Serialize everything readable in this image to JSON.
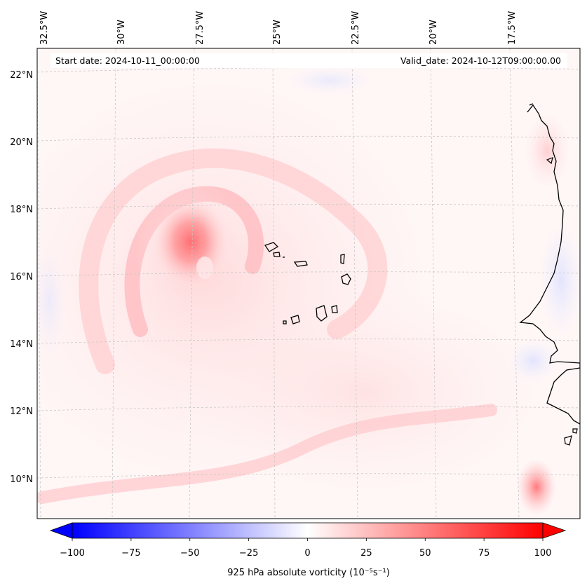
{
  "map": {
    "start_date_label": "Start date: 2024-10-11_00:00:00",
    "valid_date_label": "Valid_date: 2024-10-12T09:00:00.00",
    "lon_labels": [
      "32.5°W",
      "30°W",
      "27.5°W",
      "25°W",
      "22.5°W",
      "20°W",
      "17.5°W"
    ],
    "lat_labels": [
      "22°N",
      "20°N",
      "18°N",
      "16°N",
      "14°N",
      "12°N",
      "10°N"
    ],
    "features": {
      "vortex_center": {
        "lat": 17.0,
        "lon": -28.3
      },
      "secondary_max": {
        "lat": 9.8,
        "lon": -17.2
      }
    }
  },
  "colorbar": {
    "label": "925 hPa absolute vorticity (10⁻⁵s⁻¹)",
    "min": -100,
    "max": 100,
    "ticks": [
      "−100",
      "−75",
      "−50",
      "−25",
      "0",
      "25",
      "50",
      "75",
      "100"
    ],
    "low_color": "#0000ff",
    "mid_color": "#ffffff",
    "high_color": "#ff0000"
  }
}
